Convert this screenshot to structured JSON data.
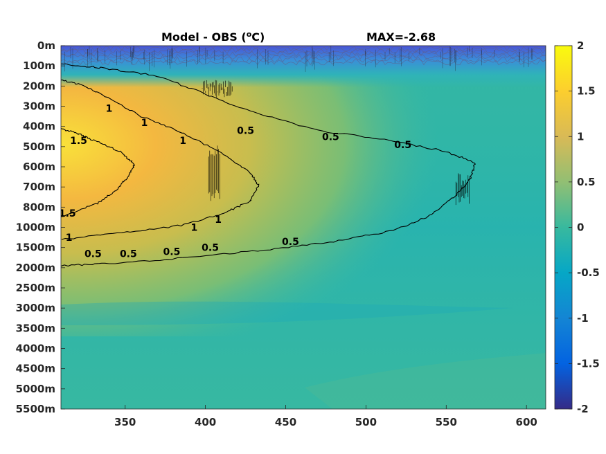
{
  "chart_data": {
    "type": "heatmap",
    "title_left": "Model - OBS (",
    "title_unit_sup": "o",
    "title_unit": "C)",
    "title_right": "MAX=-2.68",
    "x_ticks": [
      350,
      400,
      450,
      500,
      550,
      600
    ],
    "xlim": [
      310,
      612
    ],
    "y_tick_labels": [
      "0m",
      "100m",
      "200m",
      "300m",
      "400m",
      "500m",
      "600m",
      "700m",
      "800m",
      "1000m",
      "1500m",
      "2000m",
      "2500m",
      "3000m",
      "3500m",
      "4000m",
      "4500m",
      "5000m",
      "5500m"
    ],
    "colorbar": {
      "ticks": [
        "2",
        "1.5",
        "1",
        "0.5",
        "0",
        "-0.5",
        "-1",
        "-1.5",
        "-2"
      ],
      "values": [
        2,
        1.5,
        1,
        0.5,
        0,
        -0.5,
        -1,
        -1.5,
        -2
      ],
      "range": [
        -2,
        2
      ],
      "colormap": "parula",
      "colors": [
        "#352a87",
        "#0363e1",
        "#1485d4",
        "#06a7c6",
        "#38b99e",
        "#92bf73",
        "#d9ba56",
        "#fcce2e",
        "#f9fb0e"
      ]
    },
    "contours": [
      {
        "level": 1.5,
        "label": "1.5",
        "points": [
          [
            310,
            4.1
          ],
          [
            322,
            4.4
          ],
          [
            334,
            4.8
          ],
          [
            348,
            5.3
          ],
          [
            356,
            5.9
          ],
          [
            352,
            6.5
          ],
          [
            345,
            7.1
          ],
          [
            333,
            7.8
          ],
          [
            310,
            8.5
          ]
        ]
      },
      {
        "level": 1,
        "label": "1",
        "points": [
          [
            310,
            1.7
          ],
          [
            325,
            2.0
          ],
          [
            340,
            2.6
          ],
          [
            360,
            3.5
          ],
          [
            385,
            4.3
          ],
          [
            410,
            5.3
          ],
          [
            428,
            6.3
          ],
          [
            433,
            6.9
          ],
          [
            428,
            7.7
          ],
          [
            412,
            8.3
          ],
          [
            385,
            8.9
          ],
          [
            345,
            9.3
          ],
          [
            310,
            9.6
          ]
        ]
      },
      {
        "level": 0.5,
        "label": "0.5",
        "points": [
          [
            310,
            0.9
          ],
          [
            335,
            1.1
          ],
          [
            370,
            1.5
          ],
          [
            400,
            2.4
          ],
          [
            430,
            3.3
          ],
          [
            470,
            4.2
          ],
          [
            515,
            4.7
          ],
          [
            548,
            5.2
          ],
          [
            568,
            5.8
          ],
          [
            565,
            6.6
          ],
          [
            555,
            7.5
          ],
          [
            538,
            8.5
          ],
          [
            515,
            9.2
          ],
          [
            480,
            9.7
          ],
          [
            440,
            10.1
          ],
          [
            390,
            10.5
          ],
          [
            340,
            10.8
          ],
          [
            310,
            10.9
          ]
        ]
      }
    ],
    "contour_labels": [
      {
        "text": "1.5",
        "x": 321,
        "y": 4.7
      },
      {
        "text": "1.5",
        "x": 314,
        "y": 8.3
      },
      {
        "text": "1",
        "x": 340,
        "y": 3.1
      },
      {
        "text": "1",
        "x": 362,
        "y": 3.8
      },
      {
        "text": "1",
        "x": 386,
        "y": 4.7
      },
      {
        "text": "1",
        "x": 315,
        "y": 9.5
      },
      {
        "text": "1",
        "x": 393,
        "y": 9.0
      },
      {
        "text": "1",
        "x": 408,
        "y": 8.6
      },
      {
        "text": "0.5",
        "x": 330,
        "y": 10.3
      },
      {
        "text": "0.5",
        "x": 352,
        "y": 10.3
      },
      {
        "text": "0.5",
        "x": 379,
        "y": 10.2
      },
      {
        "text": "0.5",
        "x": 403,
        "y": 10.0
      },
      {
        "text": "0.5",
        "x": 453,
        "y": 9.7
      },
      {
        "text": "0.5",
        "x": 425,
        "y": 4.2
      },
      {
        "text": "0.5",
        "x": 478,
        "y": 4.5
      },
      {
        "text": "0.5",
        "x": 523,
        "y": 4.9
      }
    ]
  }
}
